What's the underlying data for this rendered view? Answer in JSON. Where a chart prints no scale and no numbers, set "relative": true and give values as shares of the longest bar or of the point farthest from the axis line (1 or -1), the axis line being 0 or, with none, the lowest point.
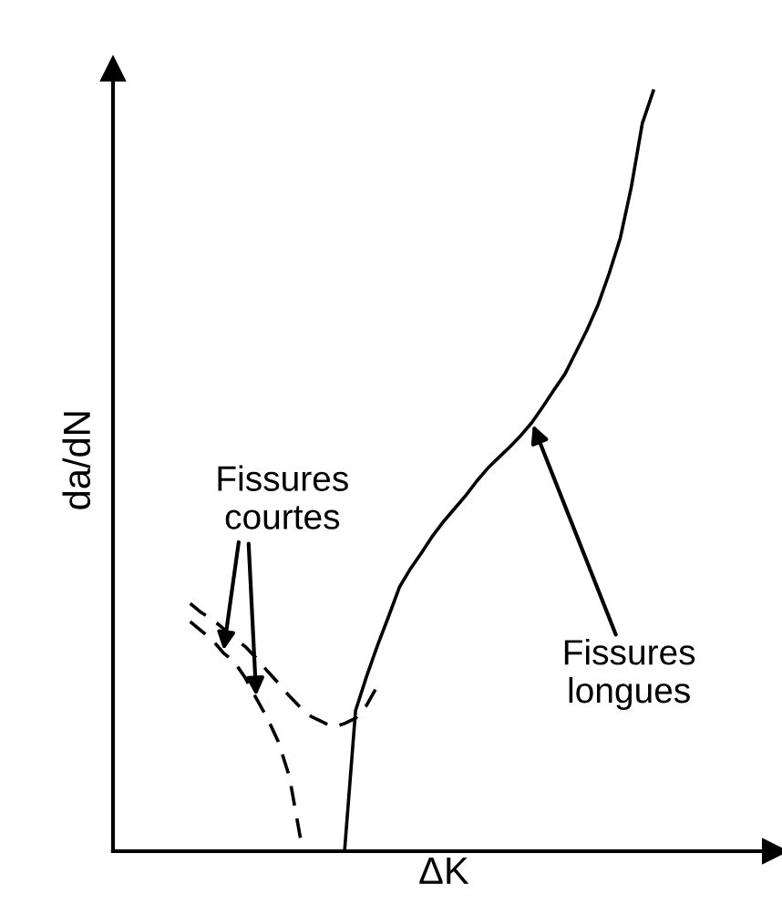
{
  "chart_data": {
    "type": "line",
    "relative": true,
    "xlabel": "ΔK",
    "ylabel": "da/dN",
    "categories": [
      null,
      null,
      null,
      null,
      null,
      null,
      null,
      null,
      null,
      null,
      null,
      null,
      null,
      null,
      null,
      null,
      null,
      null,
      null,
      null,
      null,
      null,
      null,
      null,
      null,
      null,
      null,
      null,
      null,
      null,
      null,
      null,
      null,
      null,
      null,
      null,
      null,
      null,
      null,
      null,
      null,
      null,
      null,
      null,
      null,
      null,
      null,
      null,
      null,
      null,
      null,
      null,
      null,
      null,
      null,
      null,
      null,
      null,
      null,
      null,
      null
    ],
    "series": [
      {
        "color": "#000000",
        "line_style": "solid",
        "values": [
          null,
          null,
          null,
          null,
          null,
          null,
          null,
          null,
          null,
          null,
          null,
          null,
          null,
          null,
          null,
          null,
          null,
          null,
          null,
          null,
          null,
          0,
          0.185,
          0.23,
          0.271,
          0.309,
          0.348,
          0.372,
          0.393,
          0.415,
          0.434,
          0.451,
          0.468,
          0.487,
          0.504,
          0.518,
          0.532,
          0.547,
          0.564,
          0.585,
          0.607,
          0.628,
          0.657,
          0.686,
          0.719,
          0.76,
          0.806,
          0.873,
          0.957,
          1.0,
          null,
          null,
          null,
          null,
          null,
          null,
          null,
          null,
          null,
          null,
          null
        ]
      },
      {
        "color": "#000000",
        "line_style": "dashed",
        "values": [
          null,
          null,
          null,
          null,
          null,
          null,
          null,
          0.302,
          0.29,
          0.278,
          0.261,
          0.249,
          0.228,
          0.201,
          0.175,
          0.144,
          0.098,
          0.017,
          null,
          null,
          null,
          null,
          null,
          null,
          null,
          null,
          null,
          null,
          null,
          null,
          null,
          null,
          null,
          null,
          null,
          null,
          null,
          null,
          null,
          null,
          null,
          null,
          null,
          null,
          null,
          null,
          null,
          null,
          null,
          null,
          null,
          null,
          null,
          null,
          null,
          null,
          null,
          null,
          null,
          null,
          null
        ]
      },
      {
        "color": "#000000",
        "line_style": "dashed",
        "values": [
          null,
          null,
          null,
          null,
          null,
          null,
          null,
          0.326,
          0.314,
          0.305,
          0.293,
          0.281,
          0.269,
          0.254,
          0.237,
          0.221,
          0.204,
          0.189,
          0.177,
          0.17,
          0.163,
          0.168,
          0.175,
          0.192,
          0.218,
          null,
          null,
          null,
          null,
          null,
          null,
          null,
          null,
          null,
          null,
          null,
          null,
          null,
          null,
          null,
          null,
          null,
          null,
          null,
          null,
          null,
          null,
          null,
          null,
          null,
          null,
          null,
          null,
          null,
          null,
          null,
          null,
          null,
          null,
          null,
          null
        ]
      }
    ],
    "annotations": [
      "Fissures\ncourtes",
      "Fissures\nlongues"
    ]
  }
}
